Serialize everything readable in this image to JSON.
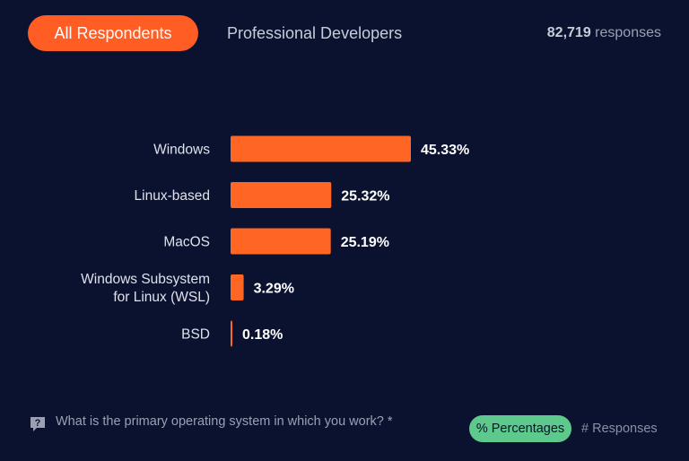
{
  "tabs": [
    {
      "label": "All Respondents",
      "active": true
    },
    {
      "label": "Professional Developers",
      "active": false
    }
  ],
  "responses": {
    "count": "82,719",
    "label": "responses"
  },
  "question": "What is the primary operating system in which you work? *",
  "view_toggle": {
    "percentages_label": "% Percentages",
    "responses_label": "# Responses"
  },
  "colors": {
    "bar": "#ff6523",
    "active_tab": "#ff5d24",
    "active_pill": "#5ec98c",
    "background": "#0b1230"
  },
  "icons": {
    "question": "question-bubble-icon"
  },
  "chart_data": {
    "type": "bar",
    "orientation": "horizontal",
    "categories": [
      "Windows",
      "Linux-based",
      "MacOS",
      "Windows Subsystem for Linux (WSL)",
      "BSD"
    ],
    "category_lines": [
      [
        "Windows"
      ],
      [
        "Linux-based"
      ],
      [
        "MacOS"
      ],
      [
        "Windows Subsystem",
        "for Linux (WSL)"
      ],
      [
        "BSD"
      ]
    ],
    "values": [
      45.33,
      25.32,
      25.19,
      3.29,
      0.18
    ],
    "labels": [
      "45.33%",
      "25.32%",
      "25.19%",
      "3.29%",
      "0.18%"
    ],
    "xlim": [
      0,
      45.33
    ],
    "grid": false
  }
}
